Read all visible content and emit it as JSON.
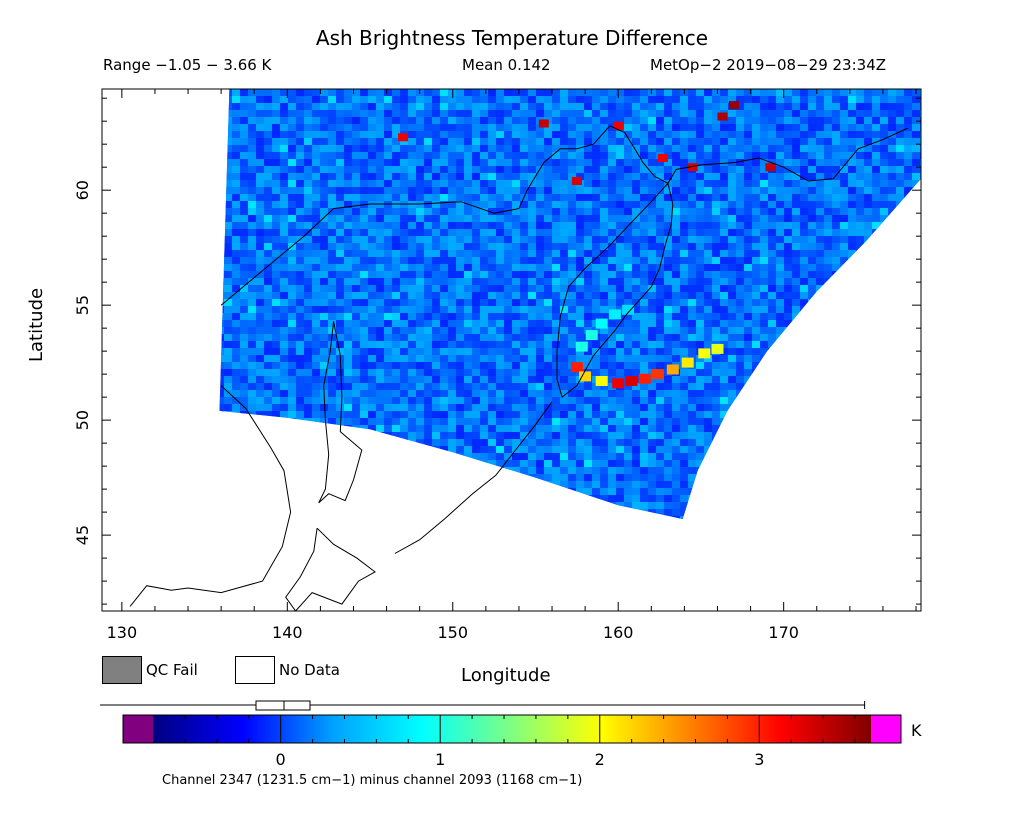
{
  "header": {
    "title": "Ash Brightness Temperature Difference",
    "range": "Range −1.05 − 3.66 K",
    "mean": "Mean 0.142",
    "satellite": "MetOp−2 2019−08−29 23:34Z"
  },
  "legend": {
    "qc_fail": "QC Fail",
    "no_data": "No Data"
  },
  "colorbar": {
    "unit": "K",
    "channel_note": "Channel 2347 (1231.5 cm−1) minus channel 2093 (1168 cm−1)",
    "min": -0.8,
    "max": 3.7,
    "ticks": [
      0,
      1,
      2,
      3
    ],
    "tick_labels": [
      "0",
      "1",
      "2",
      "3"
    ],
    "underflow_color": "#800080",
    "overflow_color": "#ff00ff",
    "stops": [
      "#000080",
      "#0000ff",
      "#00a0ff",
      "#00ffff",
      "#80ff80",
      "#ffff00",
      "#ff8000",
      "#ff0000",
      "#800000"
    ],
    "boxplot": {
      "whisker_low": -1.05,
      "q1": -0.02,
      "median": 0.142,
      "q3": 0.3,
      "whisker_high": 3.66
    }
  },
  "chart_data": {
    "type": "heatmap",
    "title": "Ash Brightness Temperature Difference",
    "xlabel": "Longitude",
    "ylabel": "Latitude",
    "xlim": [
      128.8,
      178.3
    ],
    "ylim": [
      41.7,
      64.4
    ],
    "xticks": [
      130,
      140,
      150,
      160,
      170
    ],
    "xtick_labels": [
      "130",
      "140",
      "150",
      "160",
      "170"
    ],
    "yticks": [
      45,
      50,
      55,
      60
    ],
    "ytick_labels": [
      "45",
      "50",
      "55",
      "60"
    ],
    "value_range_K": [
      -1.05,
      3.66
    ],
    "mean_K": 0.142,
    "swath_outline": [
      [
        136.5,
        64.4
      ],
      [
        178.3,
        64.4
      ],
      [
        178.3,
        60.5
      ],
      [
        175,
        57.8
      ],
      [
        172,
        55.6
      ],
      [
        169,
        53.0
      ],
      [
        166.6,
        50.4
      ],
      [
        164.8,
        47.8
      ],
      [
        163.9,
        45.7
      ],
      [
        160,
        46.3
      ],
      [
        155,
        47.5
      ],
      [
        150,
        48.6
      ],
      [
        145,
        49.6
      ],
      [
        140,
        50.1
      ],
      [
        135.9,
        50.4
      ]
    ],
    "plume": [
      {
        "lon": 157.5,
        "lat": 52.3,
        "value": 3.0
      },
      {
        "lon": 158.0,
        "lat": 51.9,
        "value": 2.2
      },
      {
        "lon": 159.0,
        "lat": 51.7,
        "value": 2.0
      },
      {
        "lon": 160.0,
        "lat": 51.6,
        "value": 3.2
      },
      {
        "lon": 160.8,
        "lat": 51.7,
        "value": 3.3
      },
      {
        "lon": 161.6,
        "lat": 51.8,
        "value": 3.0
      },
      {
        "lon": 162.4,
        "lat": 52.0,
        "value": 2.9
      },
      {
        "lon": 163.3,
        "lat": 52.2,
        "value": 2.4
      },
      {
        "lon": 164.2,
        "lat": 52.5,
        "value": 2.1
      },
      {
        "lon": 165.2,
        "lat": 52.9,
        "value": 2.0
      },
      {
        "lon": 166.0,
        "lat": 53.1,
        "value": 1.9
      },
      {
        "lon": 157.8,
        "lat": 53.2,
        "value": 1.0
      },
      {
        "lon": 158.4,
        "lat": 53.7,
        "value": 1.0
      },
      {
        "lon": 159.0,
        "lat": 54.2,
        "value": 0.9
      },
      {
        "lon": 159.8,
        "lat": 54.6,
        "value": 0.8
      },
      {
        "lon": 160.6,
        "lat": 54.8,
        "value": 0.7
      }
    ],
    "hotspots": [
      {
        "lon": 167.0,
        "lat": 63.7,
        "value": 3.6
      },
      {
        "lon": 166.3,
        "lat": 63.2,
        "value": 3.5
      },
      {
        "lon": 169.2,
        "lat": 61.0,
        "value": 3.4
      },
      {
        "lon": 164.5,
        "lat": 61.0,
        "value": 3.3
      },
      {
        "lon": 160.0,
        "lat": 62.8,
        "value": 3.2
      },
      {
        "lon": 155.5,
        "lat": 62.9,
        "value": 3.4
      },
      {
        "lon": 147.0,
        "lat": 62.3,
        "value": 3.2
      },
      {
        "lon": 162.7,
        "lat": 61.4,
        "value": 3.2
      },
      {
        "lon": 157.5,
        "lat": 60.4,
        "value": 3.3
      }
    ],
    "coastlines": [
      [
        [
          136.0,
          55.0
        ],
        [
          137.5,
          55.9
        ],
        [
          139.0,
          56.8
        ],
        [
          141.0,
          58.0
        ],
        [
          142.8,
          59.2
        ],
        [
          145.0,
          59.4
        ],
        [
          148.0,
          59.4
        ],
        [
          150.5,
          59.5
        ],
        [
          152.5,
          59.0
        ],
        [
          154.0,
          59.2
        ],
        [
          154.5,
          60.0
        ],
        [
          155.5,
          61.2
        ],
        [
          156.5,
          61.8
        ],
        [
          157.5,
          61.8
        ],
        [
          158.5,
          62.0
        ],
        [
          159.5,
          62.8
        ],
        [
          160.4,
          62.5
        ],
        [
          161.0,
          61.8
        ],
        [
          161.5,
          61.2
        ],
        [
          162.2,
          60.6
        ],
        [
          163.0,
          60.3
        ],
        [
          163.5,
          60.9
        ],
        [
          165.0,
          61.1
        ],
        [
          167.0,
          61.2
        ],
        [
          168.5,
          61.4
        ],
        [
          170.0,
          61.0
        ],
        [
          171.5,
          60.4
        ],
        [
          173.0,
          60.5
        ],
        [
          174.5,
          61.8
        ],
        [
          176.0,
          62.2
        ],
        [
          177.5,
          62.7
        ]
      ],
      [
        [
          163.0,
          60.3
        ],
        [
          162.0,
          59.5
        ],
        [
          160.8,
          58.6
        ],
        [
          159.5,
          57.6
        ],
        [
          158.0,
          56.6
        ],
        [
          157.0,
          55.8
        ],
        [
          156.5,
          54.5
        ],
        [
          156.3,
          53.0
        ],
        [
          156.3,
          51.8
        ],
        [
          156.6,
          51.0
        ],
        [
          157.5,
          51.5
        ],
        [
          158.5,
          52.8
        ],
        [
          159.8,
          53.9
        ],
        [
          160.5,
          54.6
        ],
        [
          162.0,
          55.8
        ],
        [
          162.5,
          56.6
        ],
        [
          162.8,
          57.5
        ],
        [
          163.2,
          58.5
        ],
        [
          163.3,
          59.4
        ],
        [
          163.0,
          60.3
        ]
      ],
      [
        [
          142.8,
          54.3
        ],
        [
          142.6,
          53.0
        ],
        [
          142.2,
          51.5
        ],
        [
          142.3,
          50.0
        ],
        [
          142.5,
          48.5
        ],
        [
          142.3,
          47.0
        ],
        [
          141.9,
          46.4
        ],
        [
          142.5,
          46.8
        ],
        [
          143.5,
          46.5
        ],
        [
          144.0,
          47.4
        ],
        [
          144.5,
          48.7
        ],
        [
          143.2,
          49.5
        ],
        [
          143.3,
          51.0
        ],
        [
          143.2,
          52.8
        ],
        [
          142.8,
          54.3
        ]
      ],
      [
        [
          136.0,
          51.5
        ],
        [
          137.5,
          50.5
        ],
        [
          139.0,
          48.8
        ],
        [
          139.8,
          47.8
        ],
        [
          140.2,
          46.0
        ],
        [
          139.7,
          44.5
        ],
        [
          138.5,
          43.0
        ],
        [
          136.0,
          42.5
        ],
        [
          134.0,
          42.7
        ],
        [
          133.0,
          42.6
        ],
        [
          131.5,
          42.8
        ],
        [
          130.5,
          41.9
        ]
      ],
      [
        [
          141.8,
          45.3
        ],
        [
          142.8,
          44.6
        ],
        [
          144.2,
          44.0
        ],
        [
          145.3,
          43.4
        ],
        [
          144.3,
          43.0
        ],
        [
          143.3,
          42.0
        ],
        [
          141.5,
          42.5
        ],
        [
          140.5,
          41.7
        ],
        [
          139.9,
          42.3
        ],
        [
          140.8,
          43.2
        ],
        [
          141.6,
          44.3
        ],
        [
          141.8,
          45.3
        ]
      ],
      [
        [
          156.0,
          50.8
        ],
        [
          155.0,
          49.8
        ],
        [
          153.8,
          48.7
        ],
        [
          152.6,
          47.6
        ],
        [
          151.2,
          46.8
        ],
        [
          149.5,
          45.7
        ],
        [
          148.0,
          44.8
        ],
        [
          146.5,
          44.2
        ]
      ]
    ]
  }
}
